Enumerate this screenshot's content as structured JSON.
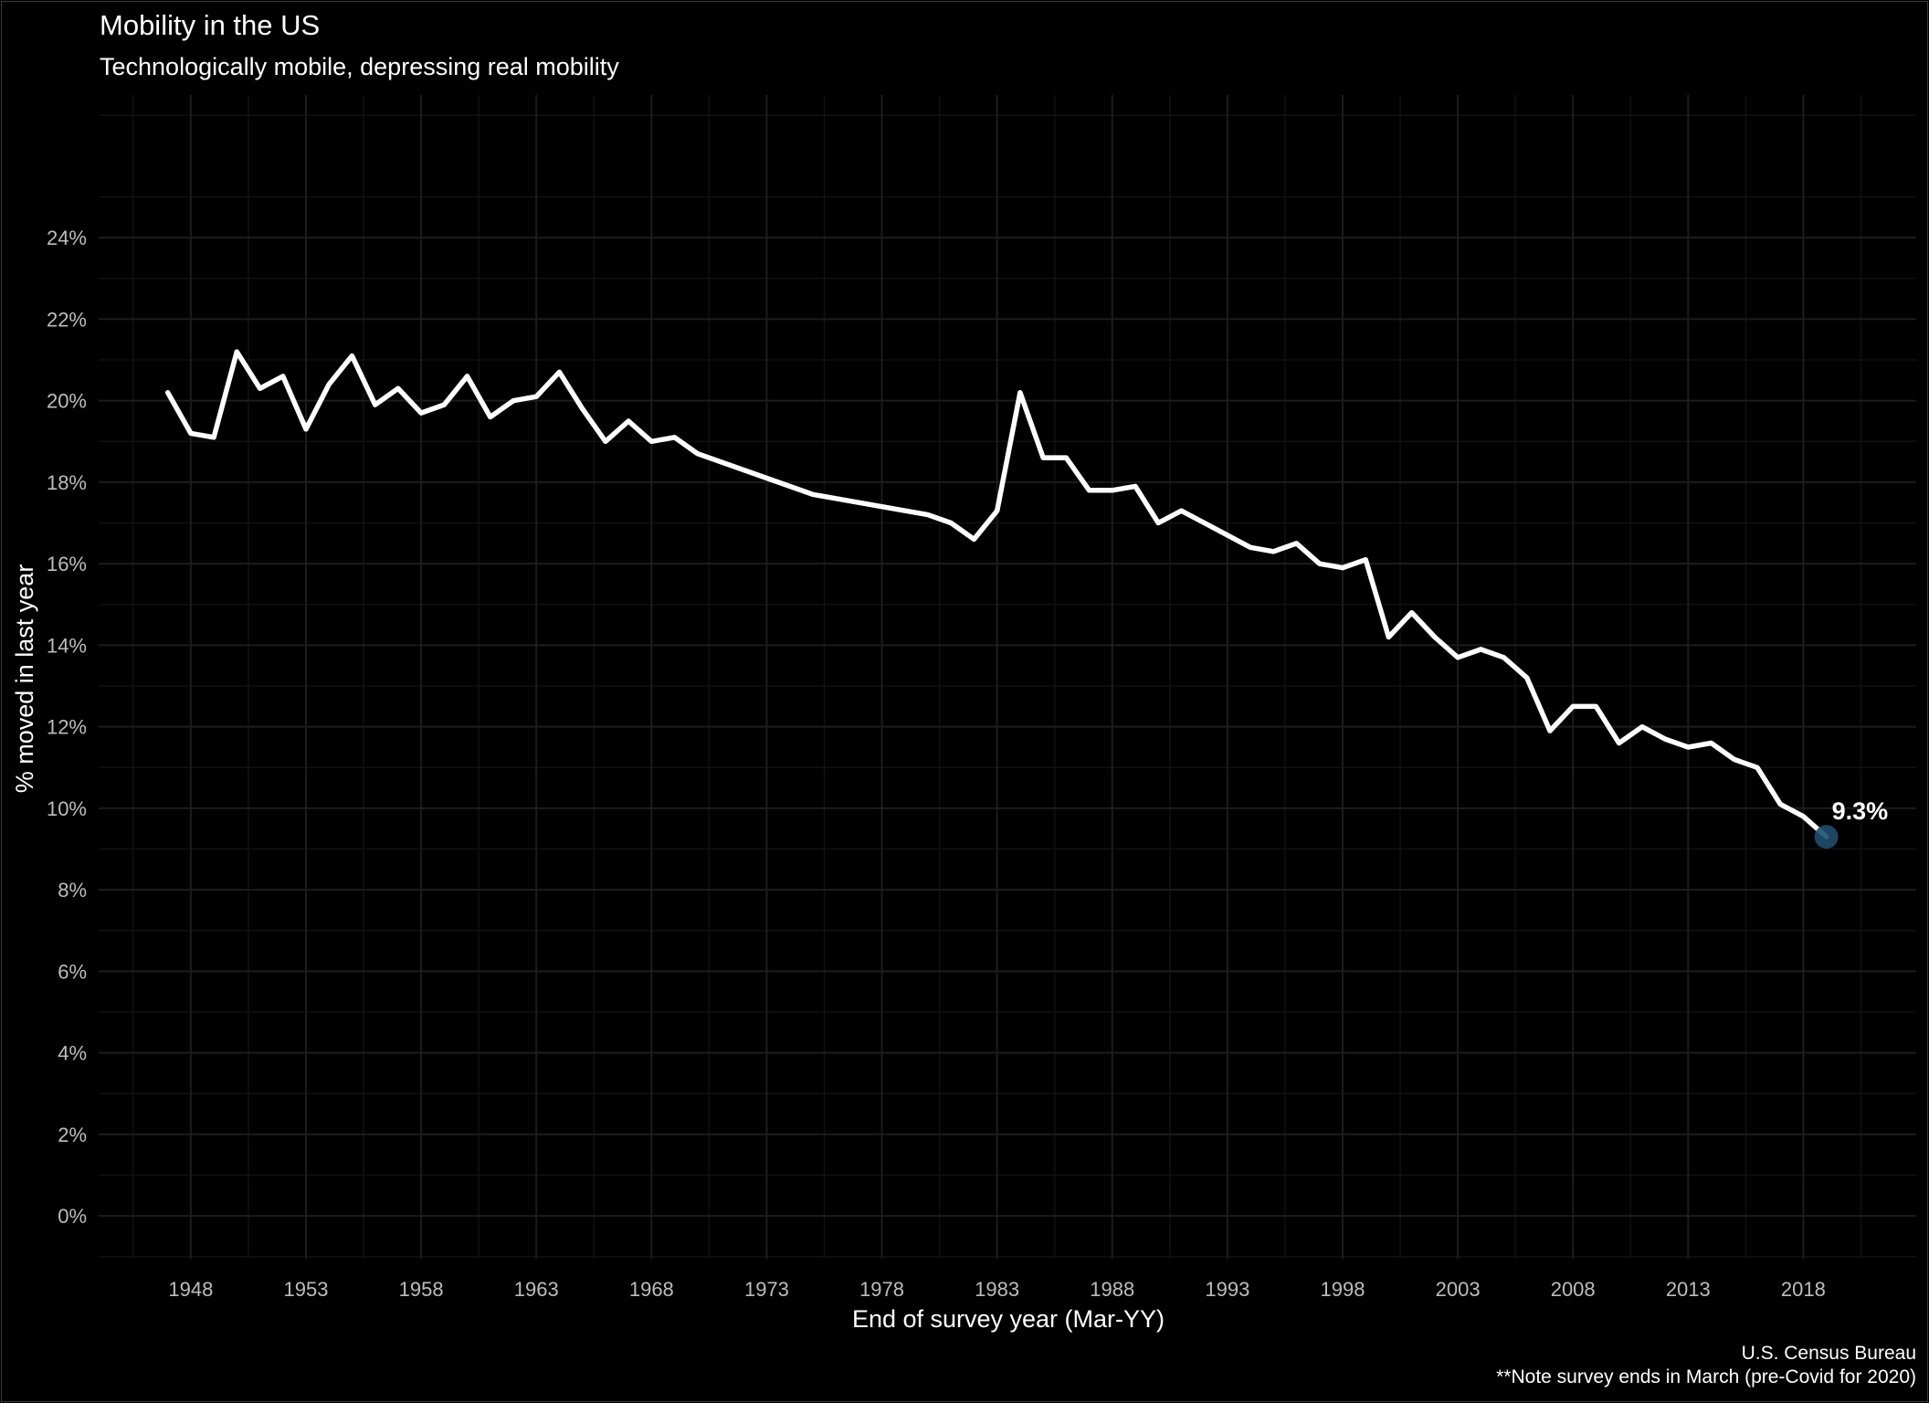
{
  "chart_data": {
    "type": "line",
    "title": "Mobility in the US",
    "subtitle": "Technologically mobile, depressing real mobility",
    "xlabel": "End of survey year (Mar-YY)",
    "ylabel": "% moved in last year",
    "caption_lines": [
      "U.S. Census Bureau",
      "**Note survey ends in March (pre-Covid for 2020)"
    ],
    "x_ticks": [
      1948,
      1953,
      1958,
      1963,
      1968,
      1973,
      1978,
      1983,
      1988,
      1993,
      1998,
      2003,
      2008,
      2013,
      2018
    ],
    "y_ticks": [
      0,
      2,
      4,
      6,
      8,
      10,
      12,
      14,
      16,
      18,
      20,
      22,
      24
    ],
    "y_tick_labels": [
      "0%",
      "2%",
      "4%",
      "6%",
      "8%",
      "10%",
      "12%",
      "14%",
      "16%",
      "18%",
      "20%",
      "22%",
      "24%"
    ],
    "xlim": [
      1944,
      2022.9
    ],
    "ylim": [
      -1.05,
      27.5
    ],
    "grid": true,
    "line_color": "#ffffff",
    "point_color": "#1f4e6b",
    "background": "#000000",
    "series": [
      {
        "x": [
          1947,
          1948,
          1949,
          1950,
          1951,
          1952,
          1953,
          1954,
          1955,
          1956,
          1957,
          1958,
          1959,
          1960,
          1961,
          1962,
          1963,
          1964,
          1965,
          1966,
          1967,
          1968,
          1969,
          1970,
          1975,
          1980,
          1981,
          1982,
          1983,
          1984,
          1985,
          1986,
          1987,
          1988,
          1989,
          1990,
          1991,
          1992,
          1993,
          1994,
          1995,
          1996,
          1997,
          1998,
          1999,
          2000,
          2001,
          2002,
          2003,
          2004,
          2005,
          2006,
          2007,
          2008,
          2009,
          2010,
          2011,
          2012,
          2013,
          2014,
          2015,
          2016,
          2017,
          2018,
          2019
        ],
        "values": [
          20.2,
          19.2,
          19.1,
          21.2,
          20.3,
          20.6,
          19.3,
          20.4,
          21.1,
          19.9,
          20.3,
          19.7,
          19.9,
          20.6,
          19.6,
          20.0,
          20.1,
          20.7,
          19.8,
          19.0,
          19.5,
          19.0,
          19.1,
          18.7,
          17.7,
          17.2,
          17.0,
          16.6,
          17.3,
          20.2,
          18.6,
          18.6,
          17.8,
          17.8,
          17.9,
          17.0,
          17.3,
          17.0,
          16.7,
          16.4,
          16.3,
          16.5,
          16.0,
          15.9,
          16.1,
          14.2,
          14.8,
          14.2,
          13.7,
          13.9,
          13.7,
          13.2,
          11.9,
          12.5,
          12.5,
          11.6,
          12.0,
          11.7,
          11.5,
          11.6,
          11.2,
          11.0,
          10.1,
          9.8,
          9.3
        ]
      }
    ],
    "highlight": {
      "x": 2019,
      "value": 9.3,
      "label": "9.3%"
    }
  }
}
